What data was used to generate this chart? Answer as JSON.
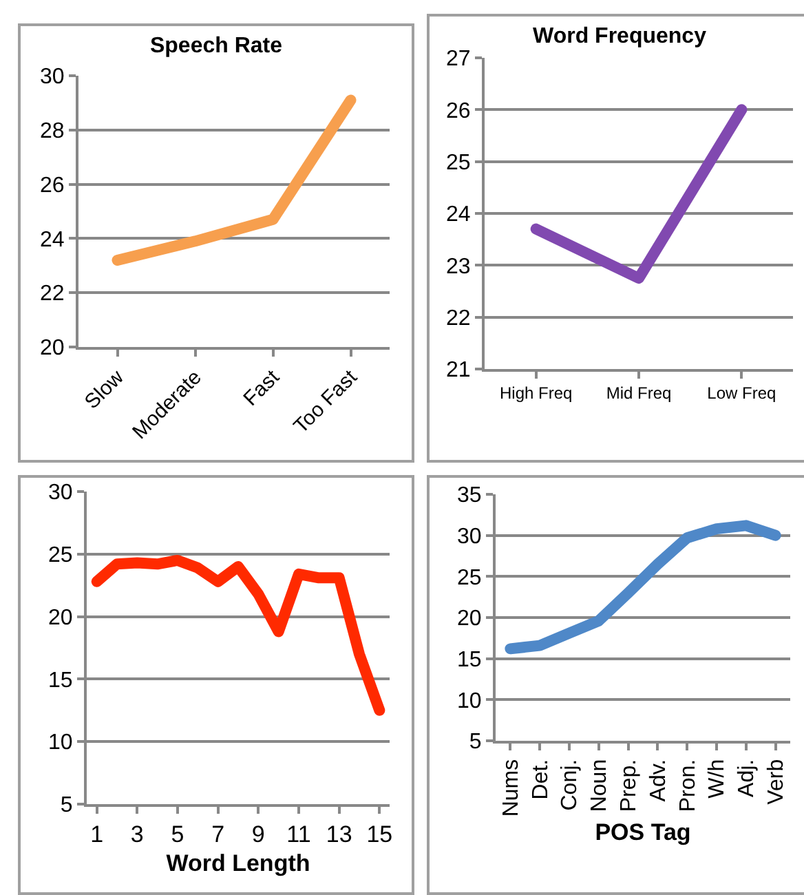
{
  "chart_data": [
    {
      "type": "line",
      "title": "Speech Rate",
      "categories": [
        "Slow",
        "Moderate",
        "Fast",
        "Too Fast"
      ],
      "series": [
        {
          "color": "#f79f4e",
          "values": [
            23.2,
            23.9,
            24.7,
            29.1
          ]
        }
      ],
      "ylim": [
        20,
        30
      ],
      "yticks": [
        20,
        22,
        24,
        26,
        28,
        30
      ],
      "grid": "y"
    },
    {
      "type": "line",
      "title": "Word Frequency",
      "categories": [
        "High Freq",
        "Mid Freq",
        "Low Freq"
      ],
      "series": [
        {
          "color": "#8149b0",
          "values": [
            23.7,
            22.75,
            26.0
          ]
        }
      ],
      "ylim": [
        21,
        27
      ],
      "yticks": [
        21,
        22,
        23,
        24,
        25,
        26,
        27
      ],
      "grid": "y"
    },
    {
      "type": "line",
      "xlabel": "Word Length",
      "x": [
        1,
        2,
        3,
        4,
        5,
        6,
        7,
        8,
        9,
        10,
        11,
        12,
        13,
        14,
        15
      ],
      "series": [
        {
          "color": "#ff2a00",
          "values": [
            22.8,
            24.2,
            24.3,
            24.2,
            24.5,
            23.9,
            22.8,
            24.0,
            21.8,
            18.8,
            23.4,
            23.1,
            23.1,
            17.0,
            12.5
          ]
        }
      ],
      "xlim": [
        0.5,
        15.5
      ],
      "xticks": [
        1,
        3,
        5,
        7,
        9,
        11,
        13,
        15
      ],
      "ylim": [
        5,
        30
      ],
      "yticks": [
        5,
        10,
        15,
        20,
        25,
        30
      ],
      "grid": "y"
    },
    {
      "type": "line",
      "xlabel": "POS Tag",
      "categories": [
        "Nums",
        "Det.",
        "Conj.",
        "Noun",
        "Prep.",
        "Adv.",
        "Pron.",
        "W/h",
        "Adj.",
        "Verb"
      ],
      "series": [
        {
          "color": "#4f88c8",
          "values": [
            16.2,
            16.6,
            18.1,
            19.6,
            23.0,
            26.5,
            29.7,
            30.8,
            31.2,
            30.0
          ]
        }
      ],
      "ylim": [
        5,
        35
      ],
      "yticks": [
        5,
        10,
        15,
        20,
        25,
        30,
        35
      ],
      "grid": "y"
    }
  ]
}
